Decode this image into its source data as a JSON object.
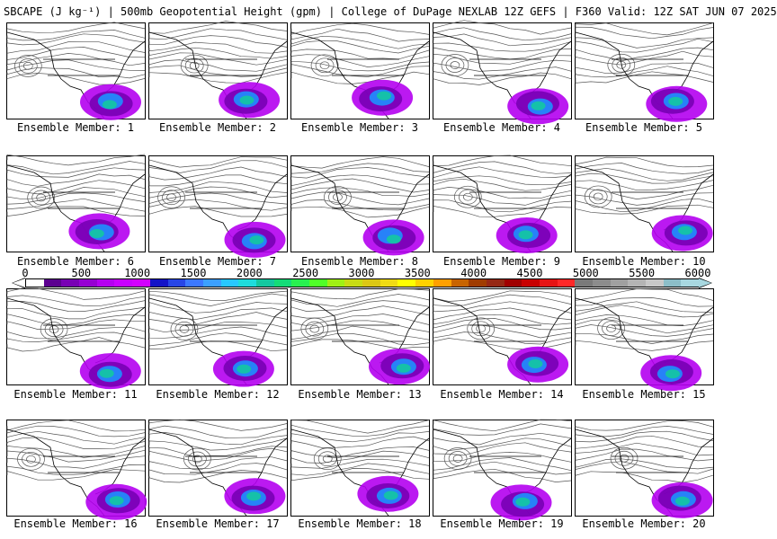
{
  "header": {
    "title": "SBCAPE (J kg⁻¹) | 500mb Geopotential Height (gpm) | College of DuPage NEXLAB 12Z GEFS | F360 Valid: 12Z SAT JUN 07 2025"
  },
  "members": [
    {
      "label": "Ensemble Member: 1"
    },
    {
      "label": "Ensemble Member: 2"
    },
    {
      "label": "Ensemble Member: 3"
    },
    {
      "label": "Ensemble Member: 4"
    },
    {
      "label": "Ensemble Member: 5"
    },
    {
      "label": "Ensemble Member: 6"
    },
    {
      "label": "Ensemble Member: 7"
    },
    {
      "label": "Ensemble Member: 8"
    },
    {
      "label": "Ensemble Member: 9"
    },
    {
      "label": "Ensemble Member: 10"
    },
    {
      "label": "Ensemble Member: 11"
    },
    {
      "label": "Ensemble Member: 12"
    },
    {
      "label": "Ensemble Member: 13"
    },
    {
      "label": "Ensemble Member: 14"
    },
    {
      "label": "Ensemble Member: 15"
    },
    {
      "label": "Ensemble Member: 16"
    },
    {
      "label": "Ensemble Member: 17"
    },
    {
      "label": "Ensemble Member: 18"
    },
    {
      "label": "Ensemble Member: 19"
    },
    {
      "label": "Ensemble Member: 20"
    }
  ],
  "colorbar": {
    "ticks": [
      "0",
      "500",
      "1000",
      "1500",
      "2000",
      "2500",
      "3000",
      "3500",
      "4000",
      "4500",
      "5000",
      "5500",
      "6000"
    ],
    "colors": [
      "#ffffff",
      "#5c0090",
      "#7800b4",
      "#9600d2",
      "#b400f0",
      "#c800ff",
      "#d200ff",
      "#1414c8",
      "#2846e6",
      "#3c78ff",
      "#3ca0ff",
      "#28c8ff",
      "#1edcdc",
      "#14c8a0",
      "#14dc78",
      "#28f050",
      "#50ff28",
      "#a0f014",
      "#c8dc14",
      "#dcc814",
      "#f0dc14",
      "#ffff00",
      "#ffd200",
      "#ffa000",
      "#c86400",
      "#a03c00",
      "#962814",
      "#a00000",
      "#c80000",
      "#e61414",
      "#ff2828",
      "#7a7a7a",
      "#8c8c8c",
      "#a0a0a0",
      "#b4b4b4",
      "#c8c8c8",
      "#8cbec8",
      "#a8d8e0"
    ]
  }
}
